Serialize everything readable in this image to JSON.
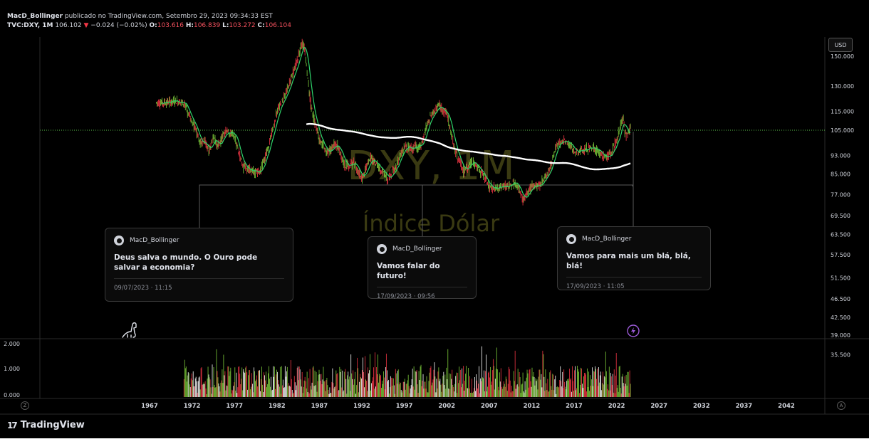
{
  "header": {
    "author": "MacD_Bollinger",
    "published": "publicado no TradingView.com, Setembro 29, 2023 09:34:33 EST",
    "symbol": "TVC:DXY, 1M",
    "price": "106.102",
    "change_arrow": "▼",
    "change": "−0.024 (−0.02%)",
    "o_label": "O:",
    "o_value": "103.616",
    "h_label": "H:",
    "h_value": "106.839",
    "l_label": "L:",
    "l_value": "103.272",
    "c_label": "C:",
    "c_value": "106.104"
  },
  "watermark": {
    "line1": "DXY, 1M",
    "line2": "Índice Dólar"
  },
  "currency_button": "USD",
  "price_axis": [
    "150.000",
    "130.000",
    "115.000",
    "105.000",
    "93.000",
    "85.000",
    "77.000",
    "69.500",
    "63.500",
    "57.500",
    "51.500",
    "46.500",
    "42.500",
    "39.000",
    "35.500"
  ],
  "volume_axis": [
    "2.000",
    "1.000",
    "0.000"
  ],
  "time_axis": [
    "1967",
    "1972",
    "1977",
    "1982",
    "1987",
    "1992",
    "1997",
    "2002",
    "2007",
    "2012",
    "2017",
    "2022",
    "2027",
    "2032",
    "2037",
    "2042"
  ],
  "ideas": [
    {
      "author": "MacD_Bollinger",
      "text": "Deus salva o mundo. O Ouro pode salvar a economia?",
      "date": "09/07/2023 · 11:15"
    },
    {
      "author": "MacD_Bollinger",
      "text": "Vamos falar do futuro!",
      "date": "17/09/2023 · 09:56"
    },
    {
      "author": "MacD_Bollinger",
      "text": "Vamos para mais um blá, blá, blá!",
      "date": "17/09/2023 · 11:05"
    }
  ],
  "brand": {
    "logo": "17",
    "name": "TradingView"
  },
  "corner_left": "Z",
  "corner_right": "A",
  "colors": {
    "up": "#7dcb3a",
    "down": "#f23645",
    "ma_white": "#ffffff",
    "ma_green": "#2fd46b",
    "last_price_line": "#5cc14a",
    "background": "#000000"
  },
  "icons": [
    "dino-icon",
    "lightning-icon",
    "avatar-icon"
  ],
  "chart_data": {
    "type": "line",
    "title": "DXY, 1M",
    "subtitle": "Índice Dólar",
    "y_scale": "log",
    "last_price": 106.102,
    "x": [
      1967.8,
      1969,
      1970,
      1971,
      1972,
      1973,
      1973.5,
      1974,
      1974.5,
      1975,
      1976,
      1977,
      1978,
      1979,
      1980,
      1981,
      1982,
      1983,
      1984,
      1985,
      1985.2,
      1986,
      1987,
      1988,
      1989,
      1990,
      1991,
      1992,
      1993,
      1994,
      1995,
      1996,
      1997,
      1998,
      1999,
      2000,
      2001,
      2002,
      2003,
      2004,
      2005,
      2006,
      2007,
      2008,
      2009,
      2010,
      2011,
      2012,
      2013,
      2014,
      2015,
      2016,
      2017,
      2018,
      2019,
      2020,
      2021,
      2022,
      2022.8,
      2023,
      2023.7
    ],
    "price": [
      120,
      120,
      121,
      120,
      110,
      98,
      100,
      95,
      102,
      97,
      105,
      102,
      88,
      86,
      86,
      97,
      115,
      125,
      140,
      160,
      158,
      118,
      100,
      94,
      99,
      88,
      90,
      83,
      92,
      88,
      83,
      88,
      97,
      96,
      98,
      112,
      118,
      114,
      95,
      86,
      90,
      86,
      80,
      79,
      80,
      82,
      75,
      80,
      81,
      86,
      98,
      100,
      95,
      95,
      97,
      94,
      92,
      100,
      113,
      102,
      106.1
    ]
  }
}
